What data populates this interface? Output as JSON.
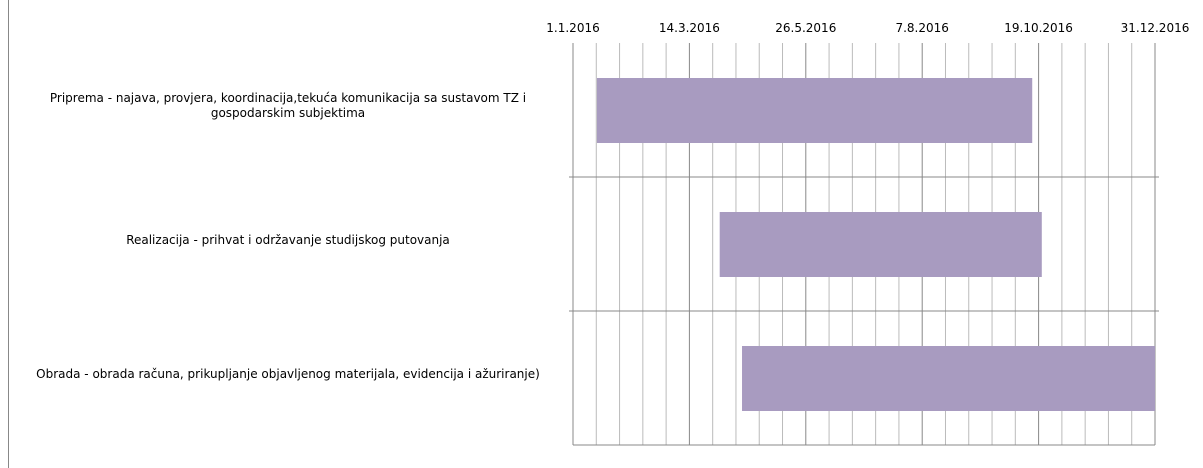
{
  "chart_data": {
    "type": "gantt",
    "categories": [
      "Priprema  - najava, provjera, koordinacija,tekuća komunikacija sa sustavom TZ i gospodarskim subjektima",
      "Realizacija - prihvat i održavanje studijskog putovanja",
      "Obrada - obrada računa, prikupljanje objavljenog materijala, evidencija i ažuriranje)"
    ],
    "starts": [
      "2016-01-16",
      "2016-04-02",
      "2016-04-16"
    ],
    "ends": [
      "2016-10-15",
      "2016-10-21",
      "2016-12-31"
    ],
    "color": "#a89bc0",
    "xlim": [
      "2016-01-01",
      "2016-12-31"
    ],
    "xticks": [
      {
        "value": "2016-01-01",
        "label": "1.1.2016"
      },
      {
        "value": "2016-03-14",
        "label": "14.3.2016"
      },
      {
        "value": "2016-05-26",
        "label": "26.5.2016"
      },
      {
        "value": "2016-08-07",
        "label": "7.8.2016"
      },
      {
        "value": "2016-10-19",
        "label": "19.10.2016"
      },
      {
        "value": "2016-12-31",
        "label": "31.12.2016"
      }
    ],
    "grid": true
  }
}
